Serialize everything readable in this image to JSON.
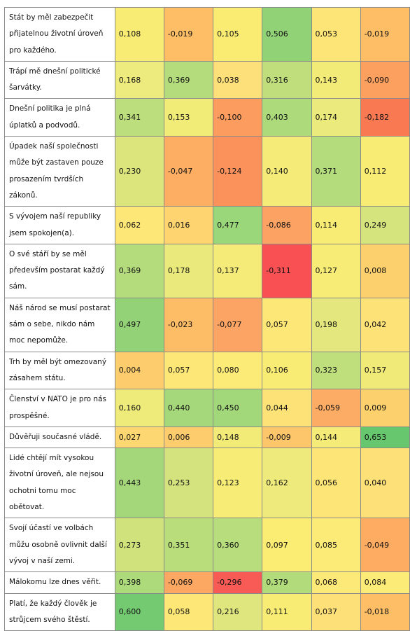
{
  "table": {
    "rows": [
      {
        "label": "Stát by měl zabezpečit přijatelnou životní úroveň pro každého.",
        "values": [
          "0,108",
          "-0,019",
          "0,105",
          "0,506",
          "0,053",
          "-0,019"
        ],
        "colors": [
          "#f8ec74",
          "#fdbe66",
          "#faec72",
          "#92d276",
          "#fde677",
          "#fdbe66"
        ]
      },
      {
        "label": "Trápí mě dnešní politické šarvátky.",
        "values": [
          "0,168",
          "0,369",
          "0,038",
          "0,316",
          "0,143",
          "-0,090"
        ],
        "colors": [
          "#edeb7e",
          "#b5dc7c",
          "#fde07a",
          "#c0df7c",
          "#f3eb78",
          "#fca05f"
        ]
      },
      {
        "label": "Dnešní politika je plná úplatků a podvodů.",
        "values": [
          "0,341",
          "0,153",
          "-0,100",
          "0,403",
          "0,174",
          "-0,182"
        ],
        "colors": [
          "#bcde7c",
          "#f1eb78",
          "#fc9c5e",
          "#addb7c",
          "#ebea7c",
          "#f97a52"
        ]
      },
      {
        "label": "Úpadek naší společnosti může být zastaven pouze prosazením tvrdších zákonů.",
        "values": [
          "0,230",
          "-0,047",
          "-0,124",
          "0,140",
          "0,371",
          "0,112"
        ],
        "colors": [
          "#dbe57c",
          "#fdae62",
          "#fb925b",
          "#f4eb78",
          "#b4dc7c",
          "#f8ec74"
        ]
      },
      {
        "label": "S vývojem naší republiky jsem spokojen(a).",
        "values": [
          "0,062",
          "0,016",
          "0,477",
          "-0,086",
          "0,114",
          "0,249"
        ],
        "colors": [
          "#fde877",
          "#fdd46f",
          "#9ad67a",
          "#fca262",
          "#f8ec74",
          "#d6e47e"
        ]
      },
      {
        "label": "O své stáří by se měl především postarat každý sám.",
        "values": [
          "0,369",
          "0,178",
          "0,137",
          "-0,311",
          "0,127",
          "0,008"
        ],
        "colors": [
          "#b5dc7c",
          "#eae97c",
          "#f5eb78",
          "#f85053",
          "#f7ec76",
          "#fdd06e"
        ]
      },
      {
        "label": "Náš národ se musí postarat sám o sebe, nikdo nám moc nepomůže.",
        "values": [
          "0,497",
          "-0,023",
          "-0,077",
          "0,057",
          "0,198",
          "0,042"
        ],
        "colors": [
          "#93d276",
          "#fdbc66",
          "#fca463",
          "#fde777",
          "#e3e77e",
          "#fde277"
        ]
      },
      {
        "label": "Trh by měl být omezovaný zásahem státu.",
        "values": [
          "0,004",
          "0,057",
          "0,080",
          "0,106",
          "0,323",
          "0,157"
        ],
        "colors": [
          "#fdcc6c",
          "#fde777",
          "#fdeb78",
          "#f9ec74",
          "#bfdf7c",
          "#f0ea78"
        ]
      },
      {
        "label": "Členství v NATO je pro nás prospěšné.",
        "values": [
          "0,160",
          "0,440",
          "0,450",
          "0,044",
          "-0,059",
          "0,009"
        ],
        "colors": [
          "#efeb7b",
          "#a5d87a",
          "#a2d77a",
          "#fde377",
          "#fcac64",
          "#fdd06e"
        ]
      },
      {
        "label": "Důvěřuji současné vládě.",
        "values": [
          "0,027",
          "0,006",
          "0,148",
          "-0,009",
          "0,144",
          "0,653"
        ],
        "colors": [
          "#fdd872",
          "#fdcc6c",
          "#f3eb78",
          "#fdc66a",
          "#f4eb78",
          "#67c76e"
        ]
      },
      {
        "label": "Lidé chtějí mít vysokou životní úroveň, ale nejsou ochotni tomu moc obětovat.",
        "values": [
          "0,443",
          "0,253",
          "0,123",
          "0,162",
          "0,056",
          "0,040"
        ],
        "colors": [
          "#a3d77a",
          "#d5e37e",
          "#f6ec76",
          "#eeea7b",
          "#fde677",
          "#fde077"
        ]
      },
      {
        "label": "Svojí účastí ve volbách můžu osobně ovlivnit další vývoj v naší zemi.",
        "values": [
          "0,273",
          "0,351",
          "0,360",
          "0,097",
          "0,085",
          "-0,049"
        ],
        "colors": [
          "#cfe27c",
          "#badd7c",
          "#b7dd7c",
          "#fbec74",
          "#fdeb78",
          "#fdac62"
        ]
      },
      {
        "label": "Málokomu lze dnes věřit.",
        "values": [
          "0,398",
          "-0,069",
          "-0,296",
          "0,379",
          "0,068",
          "0,084"
        ],
        "colors": [
          "#addb7c",
          "#fca862",
          "#f85a56",
          "#b2db7c",
          "#fde978",
          "#fdeb78"
        ]
      },
      {
        "label": "Platí, že každý člověk je strůjcem svého štěstí.",
        "values": [
          "0,600",
          "0,058",
          "0,216",
          "0,111",
          "0,037",
          "-0,018"
        ],
        "colors": [
          "#73ca71",
          "#fde777",
          "#dfe67e",
          "#f8ec74",
          "#fde077",
          "#fdbe66"
        ]
      }
    ]
  }
}
